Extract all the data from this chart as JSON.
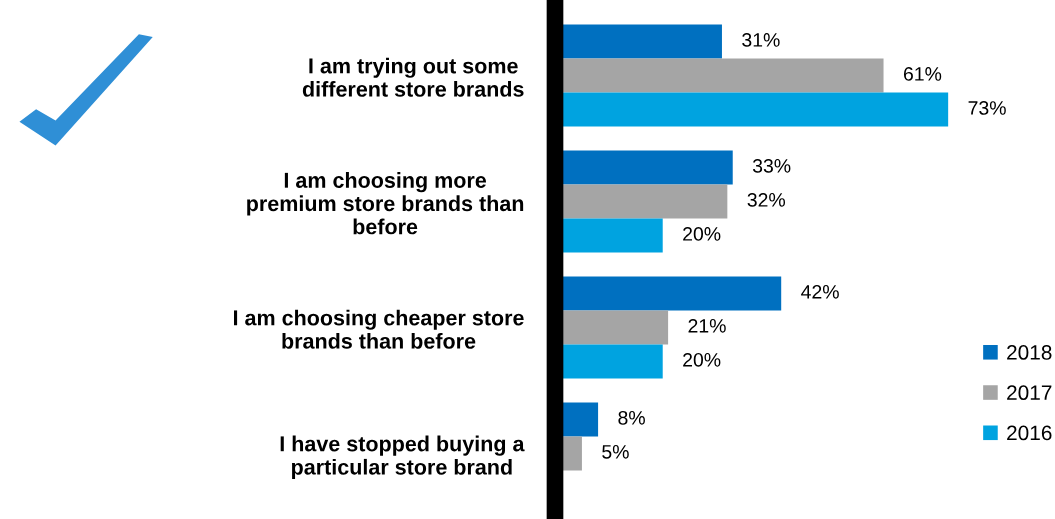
{
  "chart_data": {
    "type": "bar",
    "orientation": "horizontal",
    "categories": [
      "I am trying out some\ndifferent store brands",
      "I am choosing more\npremium store brands than\nbefore",
      "I am choosing cheaper store\nbrands than before",
      "I have stopped buying a\nparticular store brand"
    ],
    "series": [
      {
        "name": "2018",
        "color": "#0070c0",
        "values": [
          31,
          33,
          42,
          8
        ],
        "value_labels": [
          "31%",
          "33%",
          "42%",
          "8%"
        ]
      },
      {
        "name": "2017",
        "color": "#a5a5a5",
        "values": [
          61,
          32,
          21,
          5
        ],
        "value_labels": [
          "61%",
          "32%",
          "21%",
          "5%"
        ]
      },
      {
        "name": "2016",
        "color": "#00a3e0",
        "values": [
          73,
          20,
          20,
          null
        ],
        "value_labels": [
          "73%",
          "20%",
          "20%",
          null
        ]
      }
    ],
    "legend": "right",
    "tick_labels": "y"
  }
}
